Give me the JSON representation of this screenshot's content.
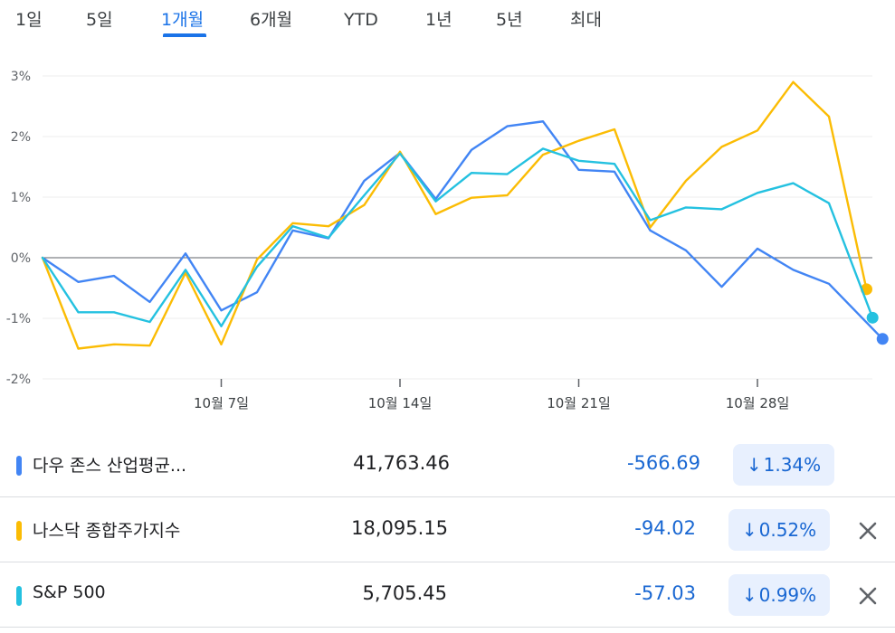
{
  "tabs": [
    {
      "label": "1일",
      "active": false
    },
    {
      "label": "5일",
      "active": false
    },
    {
      "label": "1개월",
      "active": true
    },
    {
      "label": "6개월",
      "active": false
    },
    {
      "label": "YTD",
      "active": false
    },
    {
      "label": "1년",
      "active": false
    },
    {
      "label": "5년",
      "active": false
    },
    {
      "label": "최대",
      "active": false
    }
  ],
  "chart_data": {
    "type": "line",
    "ylim": [
      -2,
      3
    ],
    "y_ticks": [
      {
        "value": 3,
        "label": "3%"
      },
      {
        "value": 2,
        "label": "2%"
      },
      {
        "value": 1,
        "label": "1%"
      },
      {
        "value": 0,
        "label": "0%"
      },
      {
        "value": -1,
        "label": "-1%"
      },
      {
        "value": -2,
        "label": "-2%"
      }
    ],
    "x_ticks": [
      {
        "index": 5,
        "label": "10월 7일"
      },
      {
        "index": 10,
        "label": "10월 14일"
      },
      {
        "index": 15,
        "label": "10월 21일"
      },
      {
        "index": 20,
        "label": "10월 28일"
      }
    ],
    "baseline": 0,
    "grid": true,
    "series": [
      {
        "name": "다우 존스 산업평균지수",
        "color": "#4285f4",
        "values": [
          0,
          -0.4,
          -0.3,
          -0.73,
          0.07,
          -0.87,
          -0.57,
          0.45,
          0.32,
          1.27,
          1.73,
          0.97,
          1.78,
          2.17,
          2.25,
          1.45,
          1.42,
          0.45,
          0.12,
          -0.48,
          0.15,
          -0.2,
          -0.43,
          -1.34
        ]
      },
      {
        "name": "나스닥 종합주가지수",
        "color": "#fbbc04",
        "values": [
          0,
          -1.5,
          -1.43,
          -1.45,
          -0.25,
          -1.43,
          -0.03,
          0.57,
          0.52,
          0.87,
          1.75,
          0.72,
          0.99,
          1.03,
          1.7,
          1.93,
          2.12,
          0.5,
          1.27,
          1.83,
          2.1,
          2.9,
          2.33,
          -0.52
        ]
      },
      {
        "name": "S&P 500",
        "color": "#24c1e0",
        "values": [
          0,
          -0.9,
          -0.9,
          -1.06,
          -0.2,
          -1.13,
          -0.15,
          0.52,
          0.33,
          1.03,
          1.72,
          0.93,
          1.4,
          1.38,
          1.8,
          1.6,
          1.55,
          0.62,
          0.83,
          0.8,
          1.07,
          1.23,
          0.9,
          -0.99
        ]
      }
    ]
  },
  "rows": [
    {
      "name": "다우 존스 산업평균...",
      "value": "41,763.46",
      "change": "-566.69",
      "pct": "1.34%",
      "color": "#4285f4",
      "closable": false
    },
    {
      "name": "나스닥 종합주가지수",
      "value": "18,095.15",
      "change": "-94.02",
      "pct": "0.52%",
      "color": "#fbbc04",
      "closable": true
    },
    {
      "name": "S&P 500",
      "value": "5,705.45",
      "change": "-57.03",
      "pct": "0.99%",
      "color": "#24c1e0",
      "closable": true
    }
  ],
  "icons": {
    "down_arrow": "↓",
    "close": "close-icon"
  }
}
